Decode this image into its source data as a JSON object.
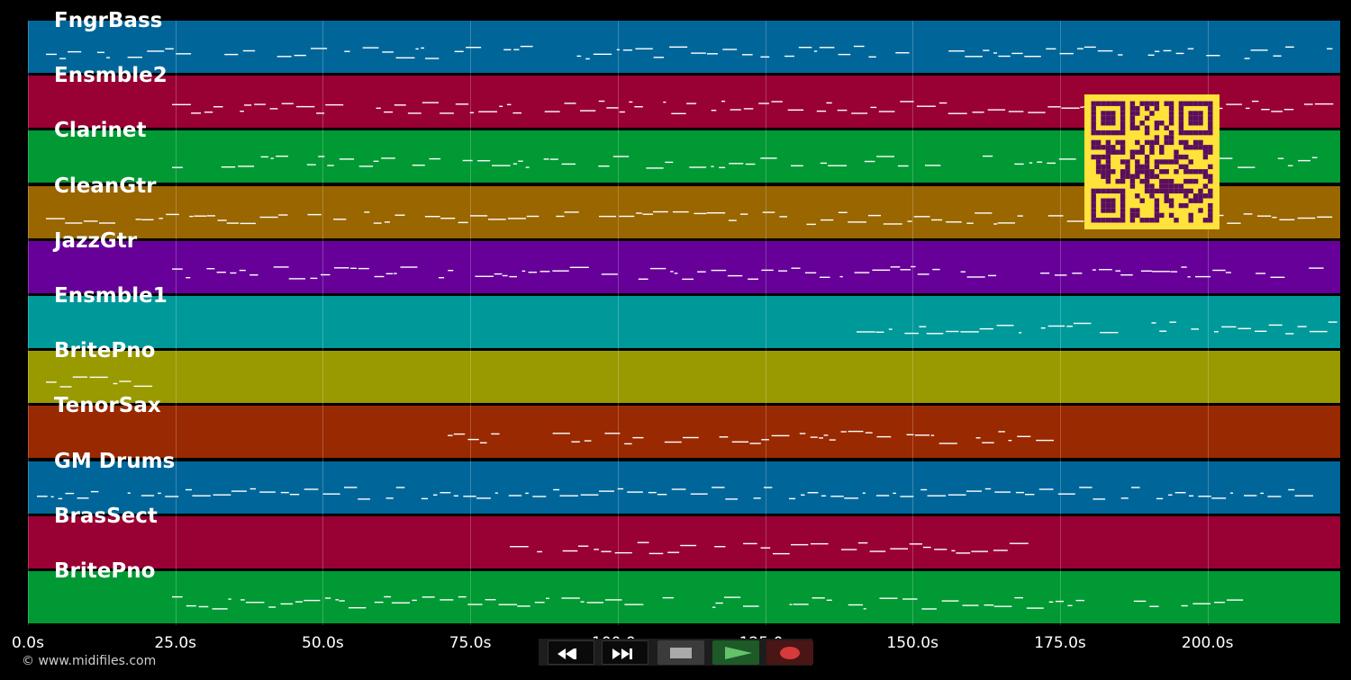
{
  "tracks": [
    {
      "name": "FngrBass",
      "color": "#006699"
    },
    {
      "name": "Ensmble2",
      "color": "#990033"
    },
    {
      "name": "Clarinet",
      "color": "#009933"
    },
    {
      "name": "CleanGtr",
      "color": "#996600"
    },
    {
      "name": "JazzGtr",
      "color": "#660099"
    },
    {
      "name": "Ensmble1",
      "color": "#009999"
    },
    {
      "name": "BritePno",
      "color": "#999900"
    },
    {
      "name": "TenorSax",
      "color": "#992900"
    },
    {
      "name": "GM Drums",
      "color": "#006699"
    },
    {
      "name": "BrasSect",
      "color": "#990033"
    },
    {
      "name": "BritePno",
      "color": "#009933"
    }
  ],
  "timeline": {
    "ticks": [
      {
        "value": 0,
        "label": "0.0s"
      },
      {
        "value": 25,
        "label": "25.0s"
      },
      {
        "value": 50,
        "label": "50.0s"
      },
      {
        "value": 75,
        "label": "75.0s"
      },
      {
        "value": 100,
        "label": "100.0s"
      },
      {
        "value": 125,
        "label": "125.0s"
      },
      {
        "value": 150,
        "label": "150.0s"
      },
      {
        "value": 175,
        "label": "175.0s"
      },
      {
        "value": 200,
        "label": "200.0s"
      }
    ],
    "max_seconds": 222.5
  },
  "footer": {
    "copyright": "© www.midifiles.com"
  },
  "transport": {
    "buttons": [
      {
        "name": "rewind-button",
        "icon": "rewind-icon"
      },
      {
        "name": "fast-forward-button",
        "icon": "fast-forward-icon"
      },
      {
        "name": "stop-button",
        "icon": "stop-icon"
      },
      {
        "name": "play-button",
        "icon": "play-icon"
      },
      {
        "name": "record-button",
        "icon": "record-icon"
      }
    ]
  },
  "qr_code": {
    "color": "#5a0e5e",
    "background": "#ffe23a"
  }
}
